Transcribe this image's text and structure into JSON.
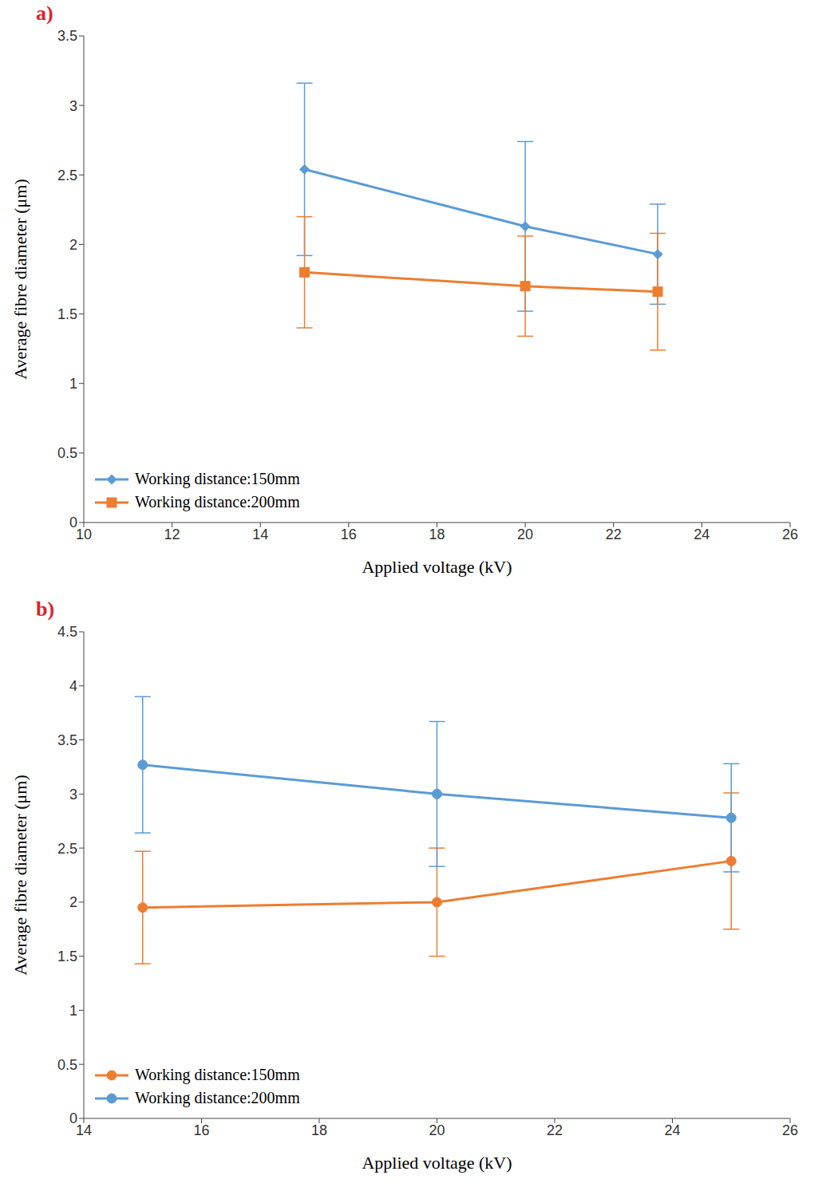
{
  "chart_data": [
    {
      "type": "line",
      "title": "a)",
      "x_label": "Applied voltage (kV)",
      "y_label": "Average fibre diameter (μm)",
      "x": [
        15,
        20,
        23
      ],
      "series": [
        {
          "name": "Working distance:150mm",
          "color": "#5b9bd5",
          "marker": "diamond",
          "values": [
            2.54,
            2.13,
            1.93
          ],
          "errors": [
            0.62,
            0.61,
            0.36
          ]
        },
        {
          "name": "Working distance:200mm",
          "color": "#ed7d31",
          "marker": "square",
          "values": [
            1.8,
            1.7,
            1.66
          ],
          "errors": [
            0.4,
            0.36,
            0.42
          ]
        }
      ],
      "xlim": [
        10,
        26
      ],
      "xticks": [
        10,
        12,
        14,
        16,
        18,
        20,
        22,
        24,
        26
      ],
      "ylim": [
        0,
        3.5
      ],
      "yticks": [
        0,
        0.5,
        1,
        1.5,
        2,
        2.5,
        3,
        3.5
      ],
      "grid": false,
      "legend": "lower left"
    },
    {
      "type": "line",
      "title": "b)",
      "x_label": "Applied voltage (kV)",
      "y_label": "Average fibre diameter (μm)",
      "x": [
        15,
        20,
        25
      ],
      "series": [
        {
          "name": "Working distance:150mm",
          "color": "#ed7d31",
          "marker": "circle",
          "values": [
            1.95,
            2.0,
            2.38
          ],
          "errors": [
            0.52,
            0.5,
            0.63
          ]
        },
        {
          "name": "Working distance:200mm",
          "color": "#5b9bd5",
          "marker": "circle",
          "values": [
            3.27,
            3.0,
            2.78
          ],
          "errors": [
            0.63,
            0.67,
            0.5
          ]
        }
      ],
      "xlim": [
        14,
        26
      ],
      "xticks": [
        14,
        16,
        18,
        20,
        22,
        24,
        26
      ],
      "ylim": [
        0,
        4.5
      ],
      "yticks": [
        0,
        0.5,
        1,
        1.5,
        2,
        2.5,
        3,
        3.5,
        4,
        4.5
      ],
      "grid": false,
      "legend": "lower left"
    }
  ]
}
